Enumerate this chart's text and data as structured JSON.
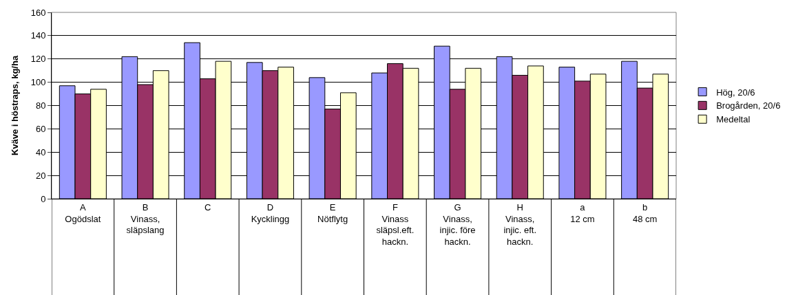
{
  "chart_data": {
    "type": "bar",
    "ylabel": "Kväve i höstraps, kg/ha",
    "categories": [
      "A\nOgödslat",
      "B\nVinass,\nsläpslang",
      "C",
      "D\nKycklingg",
      "E\nNötflytg",
      "F\nVinass\nsläpsl.eft.\nhackn.",
      "G\nVinass,\ninjic. före\nhackn.",
      "H\nVinass,\ninjic. eft.\nhackn.",
      "a\n12 cm",
      "b\n48 cm"
    ],
    "series": [
      {
        "name": "Hög, 20/6",
        "color": "#9999ff",
        "values": [
          97,
          122,
          134,
          117,
          104,
          108,
          131,
          122,
          113,
          118
        ]
      },
      {
        "name": "Brogården, 20/6",
        "color": "#993366",
        "values": [
          90,
          98,
          103,
          110,
          77,
          116,
          94,
          106,
          101,
          95
        ]
      },
      {
        "name": "Medeltal",
        "color": "#ffffcc",
        "values": [
          94,
          110,
          118,
          113,
          91,
          112,
          112,
          114,
          107,
          107
        ]
      }
    ],
    "ylim": [
      0,
      160
    ],
    "yticks": [
      0,
      20,
      40,
      60,
      80,
      100,
      120,
      140,
      160
    ],
    "grid": "y",
    "legend": "right"
  }
}
